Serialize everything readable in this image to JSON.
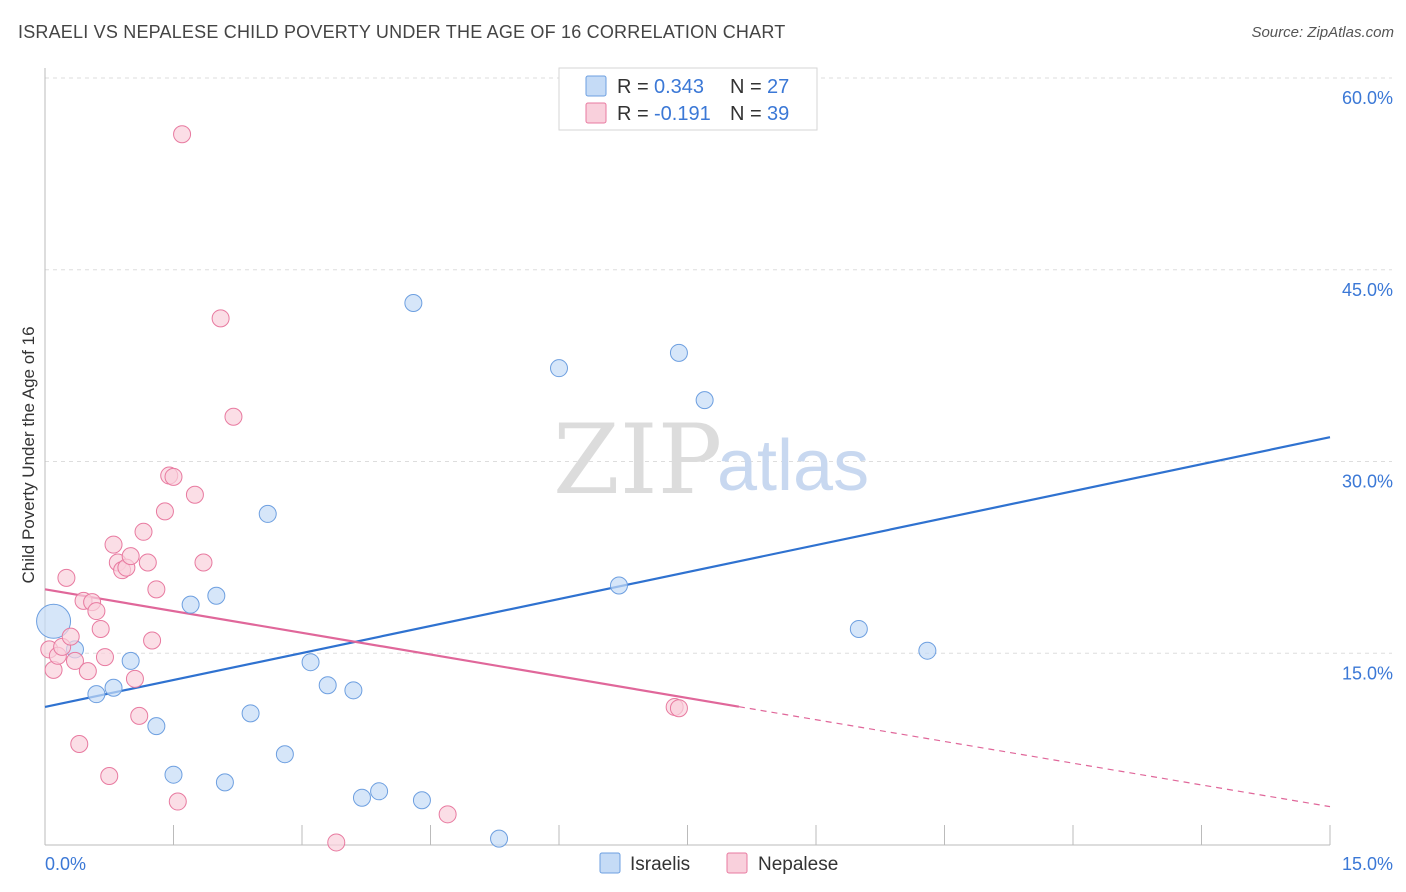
{
  "header": {
    "title": "ISRAELI VS NEPALESE CHILD POVERTY UNDER THE AGE OF 16 CORRELATION CHART",
    "source": "Source: ZipAtlas.com"
  },
  "watermark": {
    "zip": "ZIP",
    "atlas": "atlas"
  },
  "legend": {
    "rows": [
      {
        "r_label": "R =",
        "r_value": "0.343",
        "n_label": "N =",
        "n_value": "27",
        "color": "#a7c7f2"
      },
      {
        "r_label": "R =",
        "r_value": "-0.191",
        "n_label": "N =",
        "n_value": "39",
        "color": "#f6b8cb"
      }
    ]
  },
  "chart_data": {
    "type": "scatter",
    "title": "ISRAELI VS NEPALESE CHILD POVERTY UNDER THE AGE OF 16 CORRELATION CHART",
    "xlabel": "",
    "ylabel": "Child Poverty Under the Age of 16",
    "xlim": [
      0,
      15
    ],
    "ylim": [
      0,
      60
    ],
    "x_tick_labels": [
      "0.0%",
      "15.0%"
    ],
    "y_ticks": [
      15,
      30,
      45,
      60
    ],
    "y_tick_labels": [
      "15.0%",
      "30.0%",
      "45.0%",
      "60.0%"
    ],
    "series": [
      {
        "name": "Israelis",
        "color": "#6d9fe0",
        "fill": "#c5dbf6",
        "points": [
          [
            0.1,
            17.5
          ],
          [
            0.35,
            15.3
          ],
          [
            0.6,
            11.8
          ],
          [
            0.8,
            12.3
          ],
          [
            1.0,
            14.4
          ],
          [
            1.3,
            9.3
          ],
          [
            1.5,
            5.5
          ],
          [
            1.7,
            18.8
          ],
          [
            2.0,
            19.5
          ],
          [
            2.1,
            4.9
          ],
          [
            2.4,
            10.3
          ],
          [
            2.6,
            25.9
          ],
          [
            2.8,
            7.1
          ],
          [
            3.1,
            14.3
          ],
          [
            3.3,
            12.5
          ],
          [
            3.6,
            12.1
          ],
          [
            3.7,
            3.7
          ],
          [
            3.9,
            4.2
          ],
          [
            4.3,
            42.4
          ],
          [
            4.4,
            3.5
          ],
          [
            5.3,
            0.5
          ],
          [
            6.0,
            37.3
          ],
          [
            6.7,
            20.3
          ],
          [
            7.4,
            38.5
          ],
          [
            7.7,
            34.8
          ],
          [
            9.5,
            16.9
          ],
          [
            10.3,
            15.2
          ]
        ],
        "trend": {
          "from": [
            0,
            10.8
          ],
          "to": [
            15,
            31.9
          ],
          "dashed_from": null
        }
      },
      {
        "name": "Nepalese",
        "color": "#e87aa0",
        "fill": "#f9d0dc",
        "points": [
          [
            0.05,
            15.3
          ],
          [
            0.1,
            13.7
          ],
          [
            0.15,
            14.8
          ],
          [
            0.2,
            15.5
          ],
          [
            0.25,
            20.9
          ],
          [
            0.3,
            16.3
          ],
          [
            0.35,
            14.4
          ],
          [
            0.4,
            7.9
          ],
          [
            0.45,
            19.1
          ],
          [
            0.5,
            13.6
          ],
          [
            0.55,
            19.0
          ],
          [
            0.6,
            18.3
          ],
          [
            0.65,
            16.9
          ],
          [
            0.7,
            14.7
          ],
          [
            0.75,
            5.4
          ],
          [
            0.8,
            23.5
          ],
          [
            0.85,
            22.1
          ],
          [
            0.9,
            21.5
          ],
          [
            0.95,
            21.7
          ],
          [
            1.0,
            22.6
          ],
          [
            1.05,
            13.0
          ],
          [
            1.1,
            10.1
          ],
          [
            1.15,
            24.5
          ],
          [
            1.2,
            22.1
          ],
          [
            1.25,
            16.0
          ],
          [
            1.3,
            20.0
          ],
          [
            1.4,
            26.1
          ],
          [
            1.45,
            28.9
          ],
          [
            1.5,
            28.8
          ],
          [
            1.55,
            3.4
          ],
          [
            1.6,
            55.6
          ],
          [
            1.75,
            27.4
          ],
          [
            1.85,
            22.1
          ],
          [
            2.05,
            41.2
          ],
          [
            2.2,
            33.5
          ],
          [
            3.4,
            0.2
          ],
          [
            4.7,
            2.4
          ],
          [
            7.35,
            10.8
          ],
          [
            7.4,
            10.7
          ]
        ],
        "trend": {
          "from": [
            0,
            20.0
          ],
          "to": [
            15,
            3.0
          ],
          "solid_until_x": 8.1
        }
      }
    ],
    "bottom_legend": [
      "Israelis",
      "Nepalese"
    ]
  }
}
